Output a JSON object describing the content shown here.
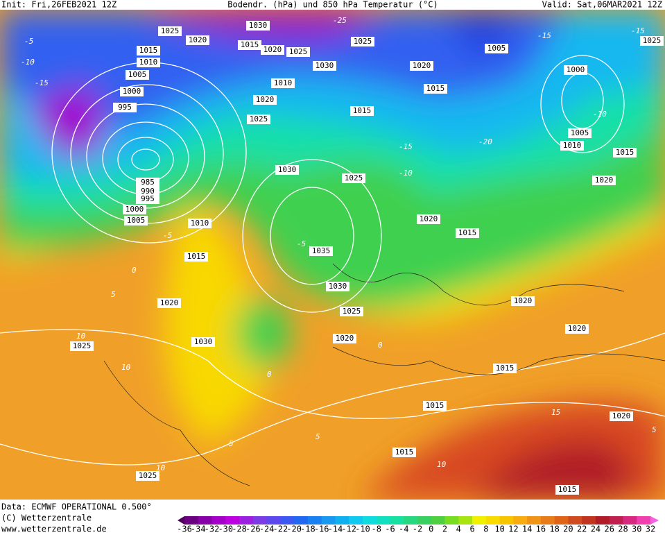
{
  "header": {
    "init": "Init: Fri,26FEB2021 12Z",
    "title": "Bodendr. (hPa) und 850 hPa Temperatur (°C)",
    "valid": "Valid: Sat,06MAR2021 12Z"
  },
  "footer": {
    "data": "Data: ECMWF OPERATIONAL 0.500°",
    "copyright": "(C) Wetterzentrale",
    "url": "www.wetterzentrale.de"
  },
  "isobar_labels": [
    1025,
    1030,
    1020,
    1015,
    1010,
    1005,
    1000,
    995,
    1015,
    1020,
    1025,
    1025,
    1030,
    1020,
    1015,
    1005,
    1000,
    1025,
    1010,
    1020,
    1025,
    1015,
    1005,
    1010,
    1015,
    1020,
    1030,
    1025,
    985,
    990,
    995,
    1000,
    1005,
    1010,
    1020,
    1015,
    1035,
    1015,
    1030,
    1020,
    1020,
    1025,
    1020,
    1025,
    1030,
    1020,
    1015,
    1015,
    1020,
    1015,
    1025,
    1015
  ],
  "isotherm_labels": [
    -5,
    -10,
    -15,
    -25,
    -15,
    -10,
    -15,
    -20,
    -15,
    -10,
    -5,
    -5,
    0,
    5,
    10,
    0,
    5,
    10,
    10,
    15,
    5,
    10,
    0,
    5
  ],
  "colorbar": {
    "labels": [
      -36,
      -34,
      -32,
      -30,
      -28,
      -26,
      -24,
      -22,
      -20,
      -18,
      -16,
      -14,
      -12,
      -10,
      -8,
      -6,
      -4,
      -2,
      0,
      2,
      4,
      6,
      8,
      10,
      12,
      14,
      16,
      18,
      20,
      22,
      24,
      26,
      28,
      30,
      32
    ],
    "colors": [
      "#50005a",
      "#6a0080",
      "#8800a8",
      "#a400c8",
      "#bc00e0",
      "#9c20e0",
      "#7c3ce4",
      "#5c48ec",
      "#3c58f0",
      "#2068f0",
      "#1880f0",
      "#1898f0",
      "#10b0f0",
      "#10c8f0",
      "#10dce0",
      "#10e0c0",
      "#18e0a0",
      "#28d880",
      "#38d060",
      "#50d040",
      "#78dc20",
      "#a8e410",
      "#f0f000",
      "#f8dc00",
      "#f8c400",
      "#f8ac10",
      "#f09418",
      "#e87c18",
      "#e06418",
      "#d04c20",
      "#c03420",
      "#b01c28",
      "#c02050",
      "#d82880",
      "#f040b0",
      "#f860e0"
    ]
  }
}
